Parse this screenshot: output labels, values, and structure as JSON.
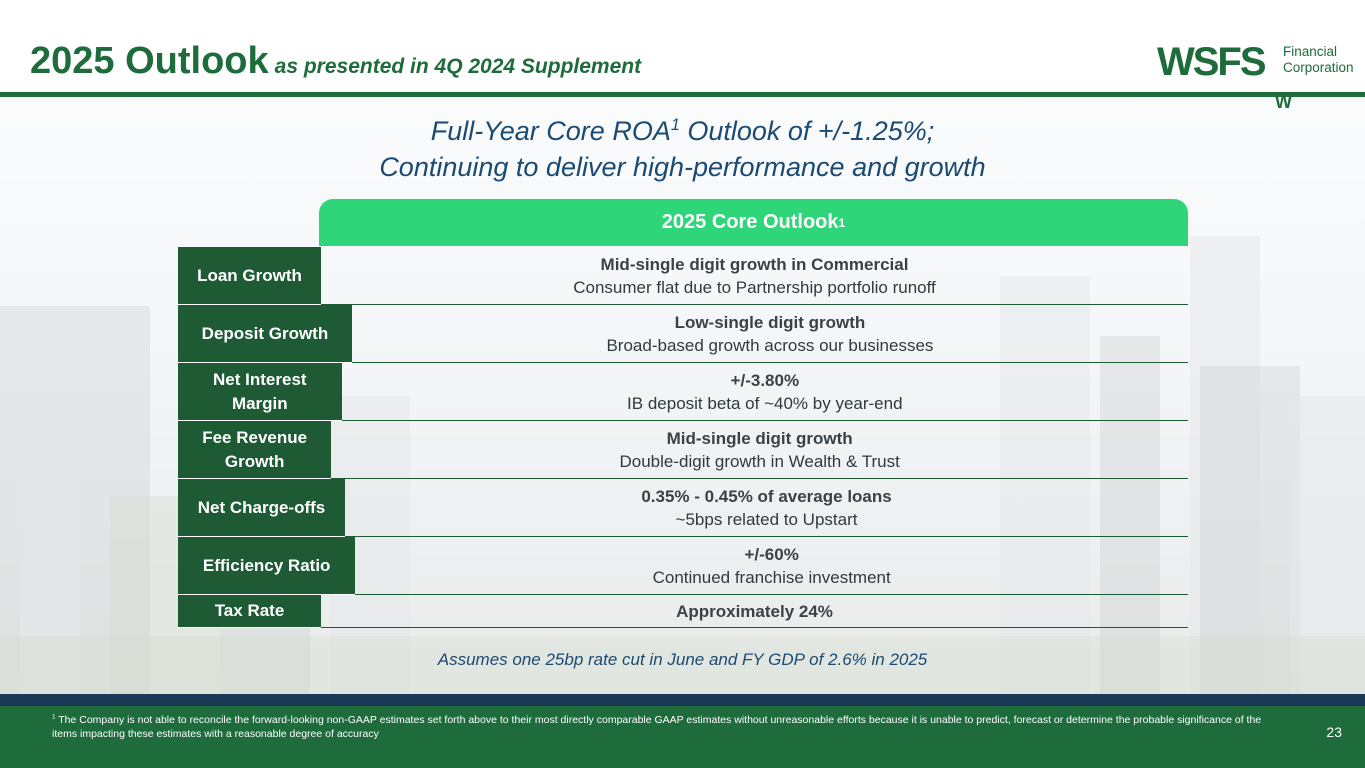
{
  "header": {
    "title": "2025 Outlook",
    "subtitle": "as presented in 4Q 2024 Supplement",
    "logo": {
      "wordmark": "WSFS",
      "line1": "Financial",
      "line2": "Corporation",
      "mark": "W"
    }
  },
  "headline": {
    "line1_prefix": "Full-Year Core ROA",
    "line1_sup": "1",
    "line1_suffix": " Outlook of +/-1.25%;",
    "line2": "Continuing to deliver high-performance and growth"
  },
  "outlook": {
    "title": "2025 Core Outlook",
    "title_sup": "1",
    "rows": [
      {
        "label": "Loan Growth",
        "main": "Mid-single digit growth in Commercial",
        "detail": "Consumer flat due to Partnership portfolio runoff"
      },
      {
        "label": "Deposit Growth",
        "main": "Low-single digit growth",
        "detail": "Broad-based growth across our businesses"
      },
      {
        "label": "Net Interest Margin",
        "main": "+/-3.80%",
        "detail": "IB deposit beta of ~40% by year-end"
      },
      {
        "label": "Fee Revenue Growth",
        "main": "Mid-single digit growth",
        "detail": "Double-digit growth in Wealth & Trust"
      },
      {
        "label": "Net Charge-offs",
        "main": "0.35% - 0.45% of average loans",
        "detail": "~5bps related to Upstart"
      },
      {
        "label": "Efficiency Ratio",
        "main": "+/-60%",
        "detail": "Continued franchise investment"
      },
      {
        "label": "Tax Rate",
        "main": "Approximately 24%",
        "detail": ""
      }
    ]
  },
  "assumption": "Assumes one 25bp rate cut in June and FY GDP of 2.6% in 2025",
  "footer": {
    "footnote_sup": "1",
    "footnote": " The Company is not able to reconcile the forward-looking non-GAAP estimates set forth above to their most directly comparable GAAP estimates without unreasonable efforts because it is unable to predict, forecast or determine the probable significance of the items impacting these estimates with a reasonable degree of accuracy",
    "page_number": "23"
  },
  "colors": {
    "brand_green": "#1e6b3c",
    "table_green": "#1e5b35",
    "pill_green": "#2ed579",
    "headline_blue": "#1b4a72",
    "footer_navy": "#1b3a57"
  }
}
